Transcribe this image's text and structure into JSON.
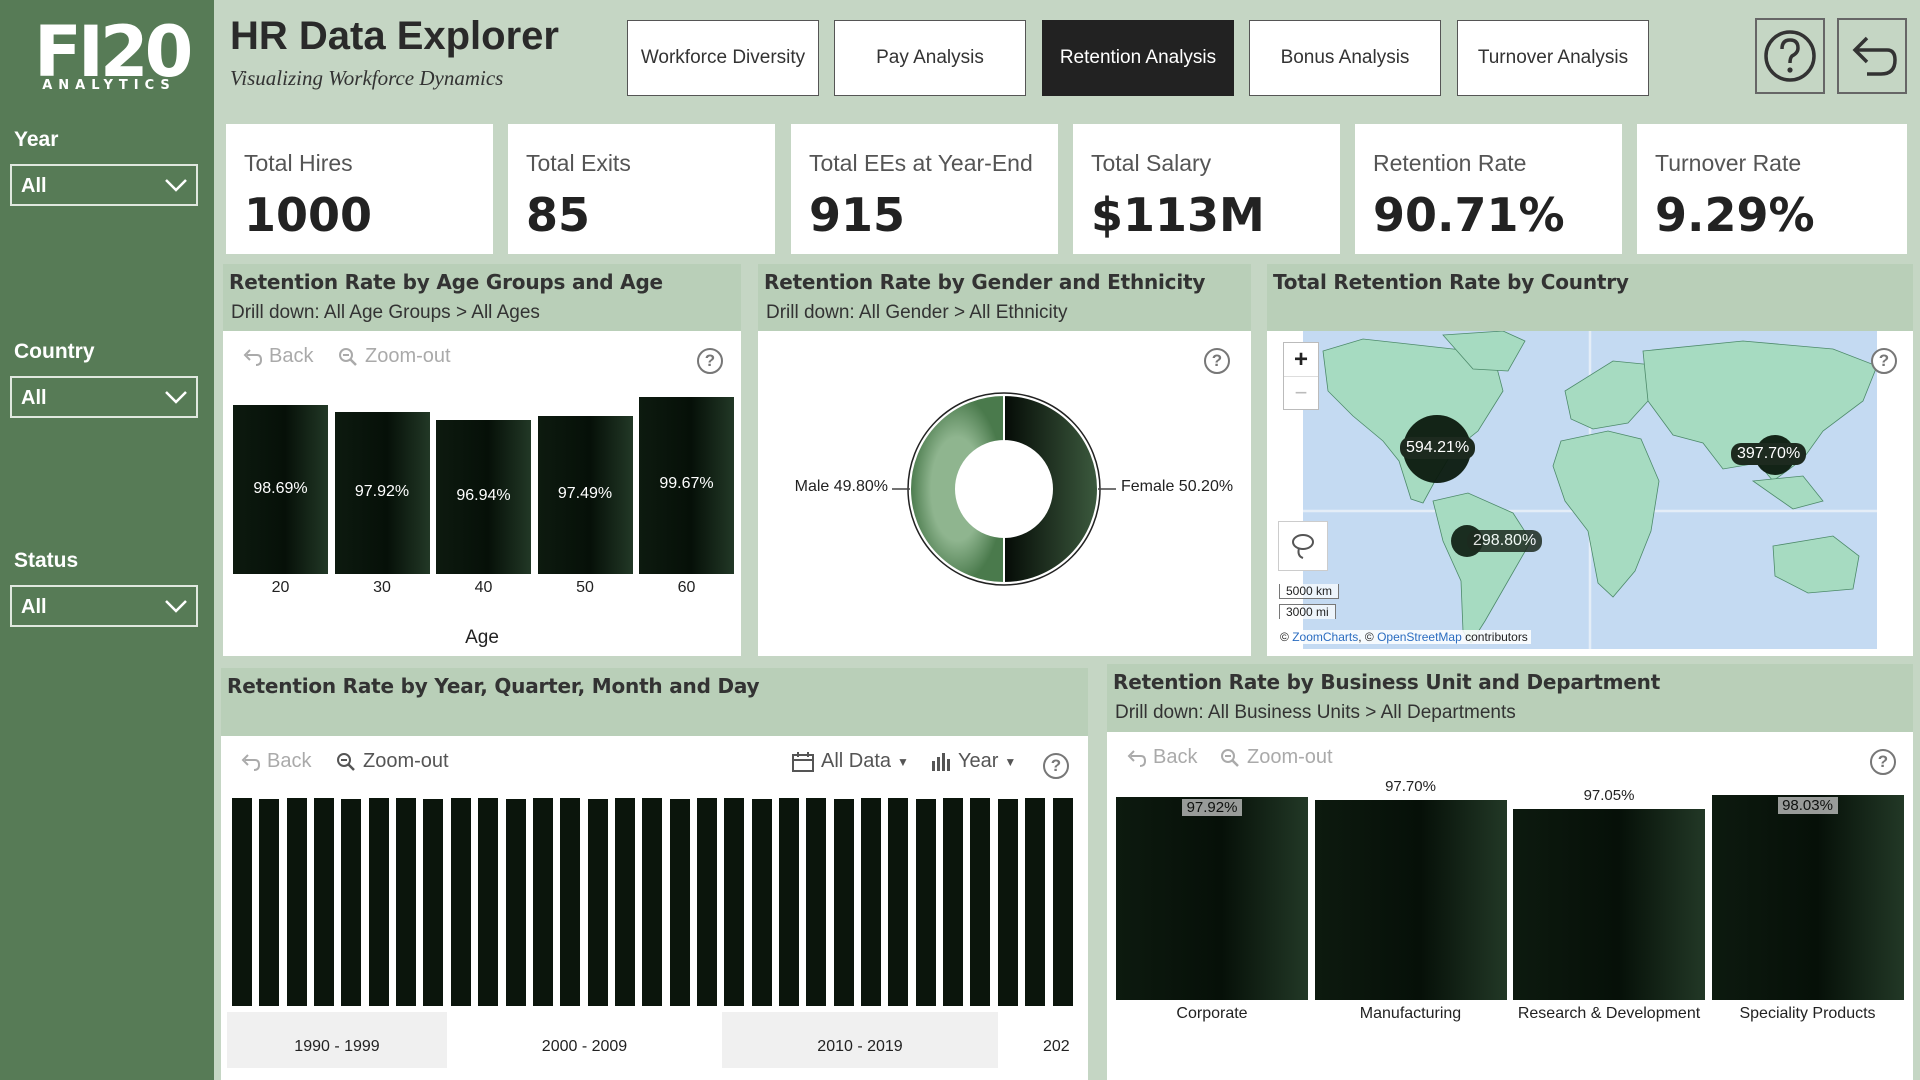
{
  "sidebar": {
    "logo_main": "FI20",
    "logo_sub": "ANALYTICS",
    "filters": [
      {
        "label": "Year",
        "value": "All"
      },
      {
        "label": "Country",
        "value": "All"
      },
      {
        "label": "Status",
        "value": "All"
      }
    ]
  },
  "header": {
    "title": "HR Data Explorer",
    "subtitle": "Visualizing Workforce Dynamics",
    "nav": [
      "Workforce Diversity",
      "Pay Analysis",
      "Retention Analysis",
      "Bonus Analysis",
      "Turnover Analysis"
    ],
    "active_nav": "Retention Analysis",
    "help_icon": "question-circle-icon",
    "back_icon": "undo-arrow-icon"
  },
  "kpis": [
    {
      "label": "Total Hires",
      "value": "1000"
    },
    {
      "label": "Total Exits",
      "value": "85"
    },
    {
      "label": "Total EEs at Year-End",
      "value": "915"
    },
    {
      "label": "Total Salary",
      "value": "$113M"
    },
    {
      "label": "Retention Rate",
      "value": "90.71%"
    },
    {
      "label": "Turnover Rate",
      "value": "9.29%"
    }
  ],
  "toolbar": {
    "back": "Back",
    "zoom_out": "Zoom-out",
    "all_data": "All Data",
    "period": "Year"
  },
  "panels": {
    "age": {
      "title": "Retention Rate by Age Groups and Age",
      "drill": "Drill down: All Age Groups > All Ages",
      "xlabel": "Age",
      "categories": [
        "20",
        "30",
        "40",
        "50",
        "60"
      ],
      "labels": [
        "98.69%",
        "97.92%",
        "96.94%",
        "97.49%",
        "99.67%"
      ]
    },
    "gender": {
      "title": "Retention Rate by Gender and Ethnicity",
      "drill": "Drill down: All Gender > All Ethnicity",
      "male_label": "Male 49.80%",
      "female_label": "Female 50.20%"
    },
    "country": {
      "title": "Total Retention Rate by Country",
      "bubbles": [
        "594.21%",
        "397.70%",
        "298.80%"
      ],
      "zoom_in": "+",
      "zoom_out": "−",
      "scale_km": "5000 km",
      "scale_mi": "3000 mi",
      "attr_prefix": "© ",
      "attr_zoom": "ZoomCharts",
      "attr_mid": ", © ",
      "attr_osm": "OpenStreetMap",
      "attr_suffix": " contributors"
    },
    "time": {
      "title": "Retention Rate by Year, Quarter, Month and Day",
      "decades": [
        "1990 - 1999",
        "2000 - 2009",
        "2010 - 2019",
        "202"
      ]
    },
    "unit": {
      "title": "Retention Rate by Business Unit and Department",
      "drill": "Drill down: All Business Units > All Departments",
      "categories": [
        "Corporate",
        "Manufacturing",
        "Research & Development",
        "Speciality Products"
      ],
      "labels": [
        "97.92%",
        "97.70%",
        "97.05%",
        "98.03%"
      ]
    }
  },
  "chart_data": [
    {
      "type": "bar",
      "title": "Retention Rate by Age Groups and Age",
      "xlabel": "Age",
      "categories": [
        "20",
        "30",
        "40",
        "50",
        "60"
      ],
      "values": [
        98.69,
        97.92,
        96.94,
        97.49,
        99.67
      ]
    },
    {
      "type": "pie",
      "title": "Retention Rate by Gender and Ethnicity",
      "categories": [
        "Male",
        "Female"
      ],
      "values": [
        49.8,
        50.2
      ]
    },
    {
      "type": "bar",
      "title": "Retention Rate by Business Unit and Department",
      "categories": [
        "Corporate",
        "Manufacturing",
        "Research & Development",
        "Speciality Products"
      ],
      "values": [
        97.92,
        97.7,
        97.05,
        98.03
      ]
    },
    {
      "type": "bar",
      "title": "Retention Rate by Year, Quarter, Month and Day",
      "categories": [
        "1990 - 1999",
        "2000 - 2009",
        "2010 - 2019",
        "202"
      ]
    }
  ],
  "colors": {
    "sidebar": "#577b56",
    "background": "#c5d6c4",
    "panel_header": "#b9cfb8",
    "bar": "#0b150c",
    "male": "#5c8a5e",
    "female": "#1b2a1d",
    "map_water": "#c4daf2",
    "map_land": "#a6dbc1"
  }
}
